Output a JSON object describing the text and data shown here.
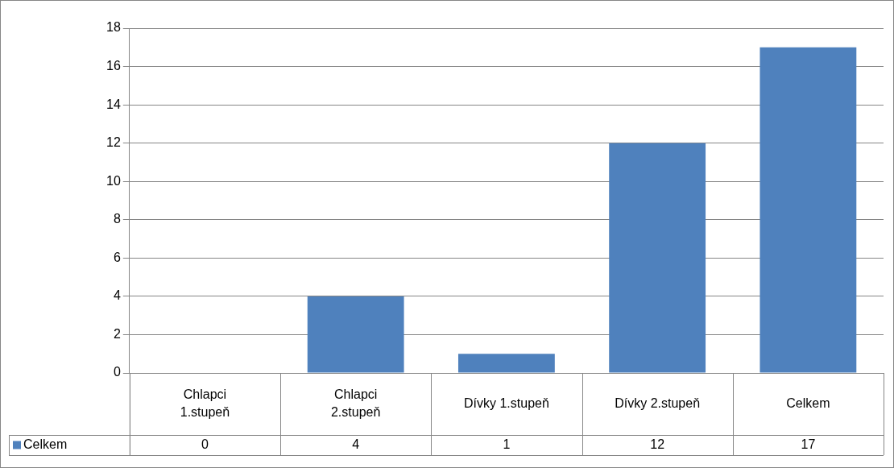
{
  "chart_data": {
    "type": "bar",
    "categories": [
      "Chlapci 1.stupeň",
      "Chlapci 2.stupeň",
      "Dívky 1.stupeň",
      "Dívky 2.stupeň",
      "Celkem"
    ],
    "series": [
      {
        "name": "Celkem",
        "color": "#4f81bd",
        "values": [
          0,
          4,
          1,
          12,
          17
        ]
      }
    ],
    "ylim": [
      0,
      18
    ],
    "yticks": [
      0,
      2,
      4,
      6,
      8,
      10,
      12,
      14,
      16,
      18
    ],
    "grid": "y",
    "legend": "bottom",
    "data_labels": true
  }
}
